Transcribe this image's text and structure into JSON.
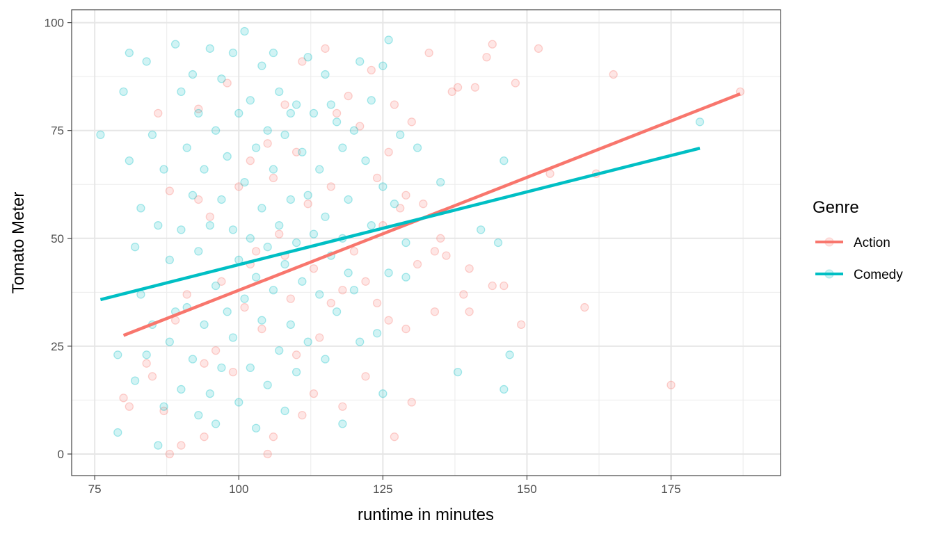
{
  "chart_data": {
    "type": "scatter",
    "title": "",
    "xlabel": "runtime in minutes",
    "ylabel": "Tomato Meter",
    "xlim": [
      71,
      194
    ],
    "ylim": [
      -5,
      103
    ],
    "xticks": [
      75,
      100,
      125,
      150,
      175
    ],
    "yticks": [
      0,
      25,
      50,
      75,
      100
    ],
    "xtick_labels": [
      "75",
      "100",
      "125",
      "150",
      "175"
    ],
    "ytick_labels": [
      "0",
      "25",
      "50",
      "75",
      "100"
    ],
    "grid": true,
    "legend": {
      "title": "Genre",
      "placement": "right"
    },
    "series": [
      {
        "name": "Action",
        "color": "#F8766D",
        "points": [
          [
            80,
            13
          ],
          [
            81,
            11
          ],
          [
            84,
            21
          ],
          [
            85,
            18
          ],
          [
            86,
            79
          ],
          [
            87,
            10
          ],
          [
            88,
            0
          ],
          [
            88,
            61
          ],
          [
            89,
            31
          ],
          [
            90,
            2
          ],
          [
            91,
            37
          ],
          [
            93,
            59
          ],
          [
            93,
            80
          ],
          [
            94,
            21
          ],
          [
            94,
            4
          ],
          [
            95,
            55
          ],
          [
            96,
            24
          ],
          [
            97,
            40
          ],
          [
            98,
            86
          ],
          [
            99,
            19
          ],
          [
            100,
            62
          ],
          [
            101,
            34
          ],
          [
            102,
            44
          ],
          [
            102,
            68
          ],
          [
            103,
            47
          ],
          [
            104,
            29
          ],
          [
            105,
            0
          ],
          [
            105,
            72
          ],
          [
            106,
            64
          ],
          [
            106,
            4
          ],
          [
            107,
            51
          ],
          [
            108,
            46
          ],
          [
            108,
            81
          ],
          [
            109,
            36
          ],
          [
            110,
            23
          ],
          [
            110,
            70
          ],
          [
            111,
            91
          ],
          [
            111,
            9
          ],
          [
            112,
            58
          ],
          [
            113,
            43
          ],
          [
            113,
            14
          ],
          [
            114,
            27
          ],
          [
            115,
            94
          ],
          [
            116,
            35
          ],
          [
            116,
            62
          ],
          [
            117,
            79
          ],
          [
            118,
            38
          ],
          [
            118,
            11
          ],
          [
            119,
            83
          ],
          [
            120,
            47
          ],
          [
            121,
            76
          ],
          [
            122,
            40
          ],
          [
            122,
            18
          ],
          [
            123,
            89
          ],
          [
            124,
            64
          ],
          [
            124,
            35
          ],
          [
            125,
            53
          ],
          [
            126,
            31
          ],
          [
            126,
            70
          ],
          [
            127,
            81
          ],
          [
            127,
            4
          ],
          [
            128,
            57
          ],
          [
            129,
            29
          ],
          [
            129,
            60
          ],
          [
            130,
            77
          ],
          [
            130,
            12
          ],
          [
            131,
            44
          ],
          [
            132,
            58
          ],
          [
            133,
            93
          ],
          [
            134,
            33
          ],
          [
            134,
            47
          ],
          [
            135,
            50
          ],
          [
            136,
            46
          ],
          [
            137,
            84
          ],
          [
            138,
            85
          ],
          [
            139,
            37
          ],
          [
            140,
            43
          ],
          [
            140,
            33
          ],
          [
            141,
            85
          ],
          [
            143,
            92
          ],
          [
            144,
            95
          ],
          [
            144,
            39
          ],
          [
            146,
            39
          ],
          [
            148,
            86
          ],
          [
            149,
            30
          ],
          [
            152,
            94
          ],
          [
            154,
            65
          ],
          [
            160,
            34
          ],
          [
            162,
            65
          ],
          [
            165,
            88
          ],
          [
            175,
            16
          ],
          [
            187,
            84
          ]
        ],
        "fit": {
          "x": [
            80,
            187
          ],
          "y": [
            27.5,
            83.5
          ]
        }
      },
      {
        "name": "Comedy",
        "color": "#00BFC4",
        "points": [
          [
            76,
            74
          ],
          [
            79,
            23
          ],
          [
            79,
            5
          ],
          [
            80,
            84
          ],
          [
            81,
            93
          ],
          [
            81,
            68
          ],
          [
            82,
            48
          ],
          [
            82,
            17
          ],
          [
            83,
            57
          ],
          [
            83,
            37
          ],
          [
            84,
            91
          ],
          [
            84,
            23
          ],
          [
            85,
            30
          ],
          [
            85,
            74
          ],
          [
            86,
            53
          ],
          [
            86,
            2
          ],
          [
            87,
            66
          ],
          [
            87,
            11
          ],
          [
            88,
            45
          ],
          [
            88,
            26
          ],
          [
            89,
            95
          ],
          [
            89,
            33
          ],
          [
            90,
            84
          ],
          [
            90,
            52
          ],
          [
            90,
            15
          ],
          [
            91,
            71
          ],
          [
            91,
            34
          ],
          [
            92,
            88
          ],
          [
            92,
            60
          ],
          [
            92,
            22
          ],
          [
            93,
            79
          ],
          [
            93,
            47
          ],
          [
            93,
            9
          ],
          [
            94,
            66
          ],
          [
            94,
            30
          ],
          [
            95,
            94
          ],
          [
            95,
            53
          ],
          [
            95,
            14
          ],
          [
            96,
            75
          ],
          [
            96,
            39
          ],
          [
            96,
            7
          ],
          [
            97,
            87
          ],
          [
            97,
            59
          ],
          [
            97,
            20
          ],
          [
            98,
            69
          ],
          [
            98,
            33
          ],
          [
            99,
            93
          ],
          [
            99,
            52
          ],
          [
            99,
            27
          ],
          [
            100,
            79
          ],
          [
            100,
            45
          ],
          [
            100,
            12
          ],
          [
            101,
            98
          ],
          [
            101,
            63
          ],
          [
            101,
            36
          ],
          [
            102,
            82
          ],
          [
            102,
            50
          ],
          [
            102,
            20
          ],
          [
            103,
            71
          ],
          [
            103,
            41
          ],
          [
            103,
            6
          ],
          [
            104,
            90
          ],
          [
            104,
            57
          ],
          [
            104,
            31
          ],
          [
            105,
            75
          ],
          [
            105,
            48
          ],
          [
            105,
            16
          ],
          [
            106,
            93
          ],
          [
            106,
            66
          ],
          [
            106,
            38
          ],
          [
            107,
            84
          ],
          [
            107,
            53
          ],
          [
            107,
            24
          ],
          [
            108,
            74
          ],
          [
            108,
            44
          ],
          [
            108,
            10
          ],
          [
            109,
            79
          ],
          [
            109,
            59
          ],
          [
            109,
            30
          ],
          [
            110,
            81
          ],
          [
            110,
            49
          ],
          [
            110,
            19
          ],
          [
            111,
            70
          ],
          [
            111,
            40
          ],
          [
            112,
            92
          ],
          [
            112,
            60
          ],
          [
            112,
            26
          ],
          [
            113,
            79
          ],
          [
            113,
            51
          ],
          [
            114,
            66
          ],
          [
            114,
            37
          ],
          [
            115,
            88
          ],
          [
            115,
            55
          ],
          [
            115,
            22
          ],
          [
            116,
            81
          ],
          [
            116,
            46
          ],
          [
            117,
            77
          ],
          [
            117,
            33
          ],
          [
            118,
            71
          ],
          [
            118,
            50
          ],
          [
            118,
            7
          ],
          [
            119,
            59
          ],
          [
            119,
            42
          ],
          [
            120,
            75
          ],
          [
            120,
            38
          ],
          [
            121,
            91
          ],
          [
            121,
            26
          ],
          [
            122,
            68
          ],
          [
            123,
            82
          ],
          [
            123,
            53
          ],
          [
            124,
            28
          ],
          [
            125,
            90
          ],
          [
            125,
            62
          ],
          [
            125,
            14
          ],
          [
            126,
            96
          ],
          [
            126,
            42
          ],
          [
            127,
            58
          ],
          [
            128,
            74
          ],
          [
            129,
            49
          ],
          [
            129,
            41
          ],
          [
            131,
            71
          ],
          [
            135,
            63
          ],
          [
            138,
            19
          ],
          [
            142,
            52
          ],
          [
            145,
            49
          ],
          [
            146,
            68
          ],
          [
            146,
            15
          ],
          [
            147,
            23
          ],
          [
            180,
            77
          ]
        ],
        "fit": {
          "x": [
            76,
            180
          ],
          "y": [
            35.8,
            70.9
          ]
        }
      }
    ]
  }
}
